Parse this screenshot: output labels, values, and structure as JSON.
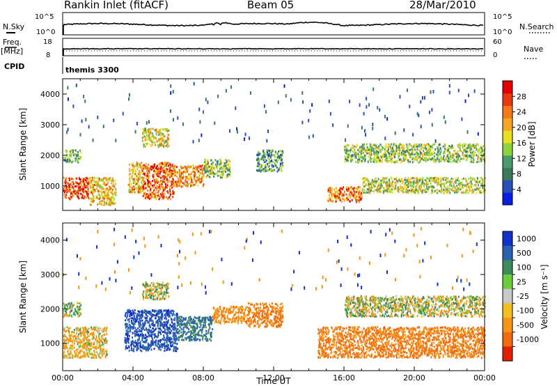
{
  "header": {
    "station": "Rankin Inlet (fitACF)",
    "beam": "Beam 05",
    "date": "28/Mar/2010"
  },
  "strips": {
    "nsky": {
      "label": "N.Sky",
      "ticks": [
        "10^5",
        "10^0"
      ]
    },
    "nsearch": {
      "label": "N.Search",
      "ticks": [
        "10^5",
        "10^0"
      ]
    },
    "freq": {
      "label1": "Freq.",
      "label2": "[MHz]",
      "ticks": [
        "18",
        "8"
      ]
    },
    "nave": {
      "label": "Nave",
      "ticks": [
        "60",
        "0"
      ]
    },
    "cpid": {
      "label": "CPID",
      "value": "themis 3300"
    }
  },
  "colors": {
    "power": [
      "#0a1ee0",
      "#2a4fb8",
      "#3a7a5a",
      "#4a9a6a",
      "#8cd43a",
      "#e8e020",
      "#f5a623",
      "#f27a1a",
      "#e83a10",
      "#e00000"
    ],
    "velocity": [
      "#1530c8",
      "#2a62b0",
      "#3d8a5a",
      "#6ccc3a",
      "#c8c8c8",
      "#f0c020",
      "#f5961a",
      "#f06a10",
      "#e02000"
    ]
  },
  "chart_data": [
    {
      "type": "heatmap",
      "panel": "power",
      "ylabel": "Slant Range [km]",
      "yticks": [
        "1000",
        "2000",
        "3000",
        "4000"
      ],
      "ylim": [
        200,
        4500
      ],
      "xlim": [
        0,
        24
      ],
      "colorbar": {
        "label": "Power [dB]",
        "ticks": [
          "4",
          "8",
          "12",
          "16",
          "20",
          "24",
          "28"
        ],
        "range": [
          0,
          32
        ]
      },
      "echo_regions": [
        {
          "t": [
            0.0,
            1.5
          ],
          "range": [
            600,
            1300
          ],
          "value": 27
        },
        {
          "t": [
            0.0,
            1.0
          ],
          "range": [
            1800,
            2200
          ],
          "value": 12
        },
        {
          "t": [
            1.5,
            3.0
          ],
          "range": [
            400,
            1300
          ],
          "value": 20
        },
        {
          "t": [
            3.7,
            4.5
          ],
          "range": [
            800,
            1800
          ],
          "value": 20
        },
        {
          "t": [
            4.5,
            6.3
          ],
          "range": [
            600,
            1800
          ],
          "value": 25
        },
        {
          "t": [
            4.5,
            6.0
          ],
          "range": [
            2300,
            2900
          ],
          "value": 18
        },
        {
          "t": [
            6.3,
            8.0
          ],
          "range": [
            1000,
            1700
          ],
          "value": 22
        },
        {
          "t": [
            8.0,
            9.5
          ],
          "range": [
            1300,
            1900
          ],
          "value": 14
        },
        {
          "t": [
            11.0,
            12.5
          ],
          "range": [
            1500,
            2200
          ],
          "value": 10
        },
        {
          "t": [
            15.0,
            17.0
          ],
          "range": [
            500,
            1000
          ],
          "value": 24
        },
        {
          "t": [
            17.0,
            24.0
          ],
          "range": [
            800,
            1300
          ],
          "value": 16
        },
        {
          "t": [
            16.0,
            24.0
          ],
          "range": [
            1800,
            2400
          ],
          "value": 14
        }
      ]
    },
    {
      "type": "heatmap",
      "panel": "velocity",
      "ylabel": "Slant Range [km]",
      "yticks": [
        "1000",
        "2000",
        "3000",
        "4000"
      ],
      "ylim": [
        200,
        4500
      ],
      "xlim": [
        0,
        24
      ],
      "xlabel": "Time UT",
      "xticks": [
        "00:00",
        "04:00",
        "08:00",
        "12:00",
        "16:00",
        "20:00",
        "00:00"
      ],
      "colorbar": {
        "label": "Velocity [m s⁻¹]",
        "ticks": [
          "1000",
          "500",
          "100",
          "25",
          "-25",
          "-100",
          "-500",
          "-1000"
        ]
      },
      "echo_regions": [
        {
          "t": [
            0.0,
            2.5
          ],
          "range": [
            600,
            1500
          ],
          "value": -100
        },
        {
          "t": [
            0.0,
            1.0
          ],
          "range": [
            1800,
            2200
          ],
          "value": 25
        },
        {
          "t": [
            3.5,
            6.5
          ],
          "range": [
            800,
            2000
          ],
          "value": 700
        },
        {
          "t": [
            4.5,
            6.0
          ],
          "range": [
            2300,
            2800
          ],
          "value": 0
        },
        {
          "t": [
            6.5,
            8.5
          ],
          "range": [
            1100,
            1800
          ],
          "value": 300
        },
        {
          "t": [
            8.5,
            10.5
          ],
          "range": [
            1600,
            2100
          ],
          "value": -200
        },
        {
          "t": [
            10.5,
            12.5
          ],
          "range": [
            1500,
            2200
          ],
          "value": -300
        },
        {
          "t": [
            14.5,
            24.0
          ],
          "range": [
            600,
            1500
          ],
          "value": -300
        },
        {
          "t": [
            16.0,
            24.0
          ],
          "range": [
            1800,
            2400
          ],
          "value": 0
        }
      ]
    }
  ]
}
